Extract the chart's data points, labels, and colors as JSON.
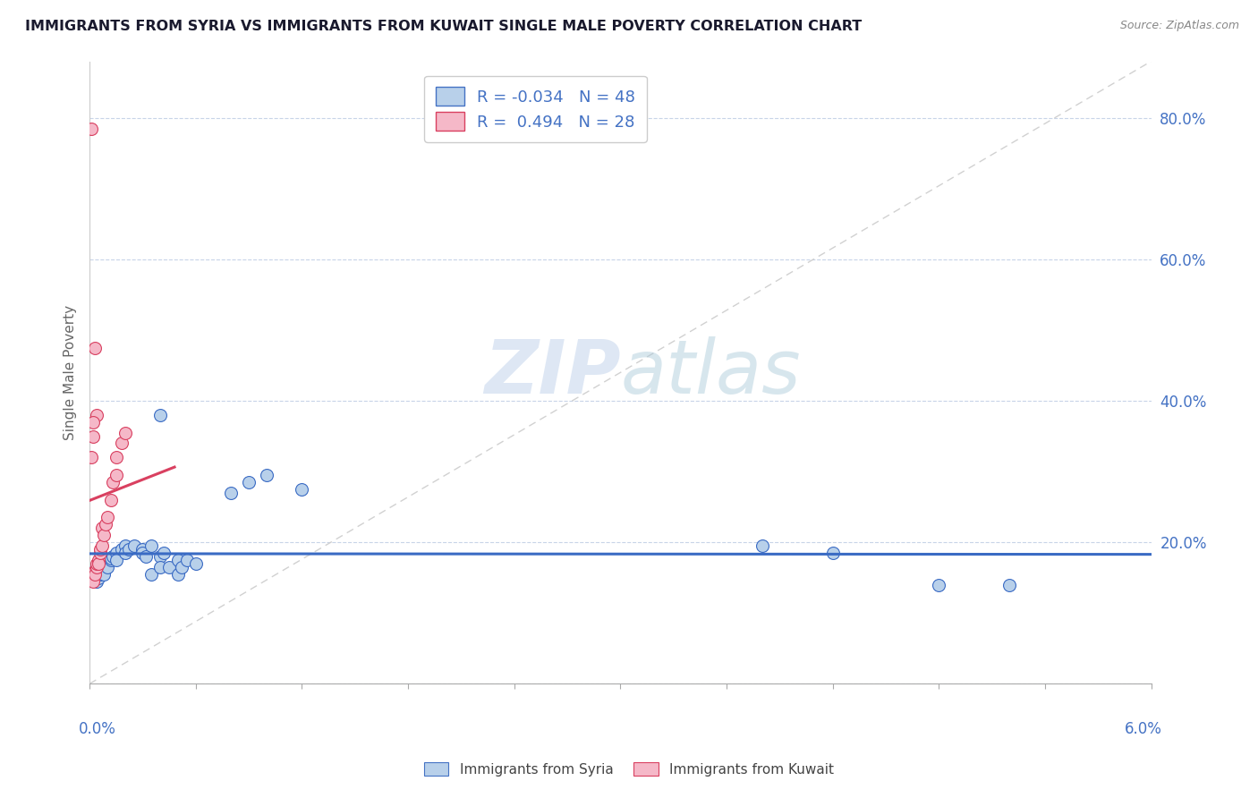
{
  "title": "IMMIGRANTS FROM SYRIA VS IMMIGRANTS FROM KUWAIT SINGLE MALE POVERTY CORRELATION CHART",
  "source": "Source: ZipAtlas.com",
  "ylabel": "Single Male Poverty",
  "watermark_zip": "ZIP",
  "watermark_atlas": "atlas",
  "legend_labels": [
    "Immigrants from Syria",
    "Immigrants from Kuwait"
  ],
  "syria_R": -0.034,
  "syria_N": 48,
  "kuwait_R": 0.494,
  "kuwait_N": 28,
  "syria_color": "#b8d0ea",
  "kuwait_color": "#f5b8c8",
  "syria_line_color": "#3a6bc4",
  "kuwait_line_color": "#d94060",
  "syria_scatter": [
    [
      0.0002,
      0.155
    ],
    [
      0.0003,
      0.16
    ],
    [
      0.0003,
      0.148
    ],
    [
      0.0004,
      0.152
    ],
    [
      0.0004,
      0.145
    ],
    [
      0.0005,
      0.158
    ],
    [
      0.0005,
      0.15
    ],
    [
      0.0006,
      0.155
    ],
    [
      0.0006,
      0.162
    ],
    [
      0.0007,
      0.165
    ],
    [
      0.0007,
      0.16
    ],
    [
      0.0008,
      0.168
    ],
    [
      0.0008,
      0.155
    ],
    [
      0.001,
      0.17
    ],
    [
      0.001,
      0.165
    ],
    [
      0.0012,
      0.175
    ],
    [
      0.0012,
      0.178
    ],
    [
      0.0013,
      0.18
    ],
    [
      0.0015,
      0.185
    ],
    [
      0.0015,
      0.175
    ],
    [
      0.0018,
      0.19
    ],
    [
      0.002,
      0.195
    ],
    [
      0.002,
      0.185
    ],
    [
      0.0022,
      0.19
    ],
    [
      0.0025,
      0.195
    ],
    [
      0.003,
      0.19
    ],
    [
      0.003,
      0.185
    ],
    [
      0.0032,
      0.18
    ],
    [
      0.0035,
      0.195
    ],
    [
      0.0035,
      0.155
    ],
    [
      0.004,
      0.18
    ],
    [
      0.004,
      0.165
    ],
    [
      0.004,
      0.38
    ],
    [
      0.0042,
      0.185
    ],
    [
      0.0045,
      0.165
    ],
    [
      0.005,
      0.175
    ],
    [
      0.005,
      0.155
    ],
    [
      0.0052,
      0.165
    ],
    [
      0.0055,
      0.175
    ],
    [
      0.006,
      0.17
    ],
    [
      0.008,
      0.27
    ],
    [
      0.009,
      0.285
    ],
    [
      0.01,
      0.295
    ],
    [
      0.012,
      0.275
    ],
    [
      0.038,
      0.195
    ],
    [
      0.042,
      0.185
    ],
    [
      0.048,
      0.14
    ],
    [
      0.052,
      0.14
    ]
  ],
  "kuwait_scatter": [
    [
      0.0001,
      0.155
    ],
    [
      0.0002,
      0.15
    ],
    [
      0.0002,
      0.145
    ],
    [
      0.0003,
      0.16
    ],
    [
      0.0003,
      0.155
    ],
    [
      0.0004,
      0.165
    ],
    [
      0.0004,
      0.17
    ],
    [
      0.0005,
      0.175
    ],
    [
      0.0005,
      0.17
    ],
    [
      0.0006,
      0.185
    ],
    [
      0.0006,
      0.19
    ],
    [
      0.0007,
      0.195
    ],
    [
      0.0007,
      0.22
    ],
    [
      0.0008,
      0.21
    ],
    [
      0.0009,
      0.225
    ],
    [
      0.001,
      0.235
    ],
    [
      0.0012,
      0.26
    ],
    [
      0.0013,
      0.285
    ],
    [
      0.0015,
      0.295
    ],
    [
      0.0015,
      0.32
    ],
    [
      0.0018,
      0.34
    ],
    [
      0.002,
      0.355
    ],
    [
      0.0002,
      0.35
    ],
    [
      0.0003,
      0.475
    ],
    [
      0.0004,
      0.38
    ],
    [
      0.0001,
      0.785
    ],
    [
      0.0001,
      0.32
    ],
    [
      0.0002,
      0.37
    ]
  ],
  "xmin": 0.0,
  "xmax": 0.06,
  "ymin": 0.0,
  "ymax": 0.88,
  "yticks": [
    0.0,
    0.2,
    0.4,
    0.6,
    0.8
  ],
  "ytick_labels": [
    "",
    "20.0%",
    "40.0%",
    "60.0%",
    "80.0%"
  ],
  "xtick_label_left": "0.0%",
  "xtick_label_right": "6.0%",
  "background_color": "#ffffff",
  "grid_color": "#c8d4e8",
  "title_color": "#1a1a2e",
  "axis_label_color": "#4472c4",
  "legend_text_color": "#4472c4"
}
